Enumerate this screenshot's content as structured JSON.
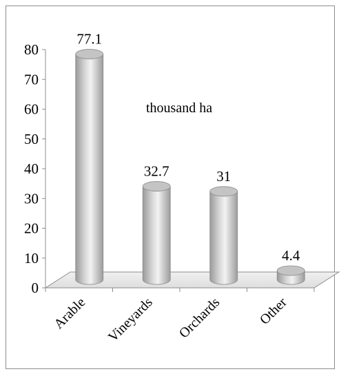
{
  "chart_data": {
    "type": "bar",
    "categories": [
      "Arable",
      "Vineyards",
      "Orchards",
      "Other"
    ],
    "values": [
      77.1,
      32.7,
      31,
      4.4
    ],
    "data_labels": [
      "77.1",
      "32.7",
      "31",
      "4.4"
    ],
    "annotation": "thousand ha",
    "ylim": [
      0,
      80
    ],
    "yticks": [
      "0",
      "10",
      "20",
      "30",
      "40",
      "50",
      "60",
      "70",
      "80"
    ],
    "grid": false,
    "legend": "none",
    "bar_style": "3d-cylinder",
    "bar_color": "#bdbdbd",
    "floor_color": "#e6e6e6"
  }
}
